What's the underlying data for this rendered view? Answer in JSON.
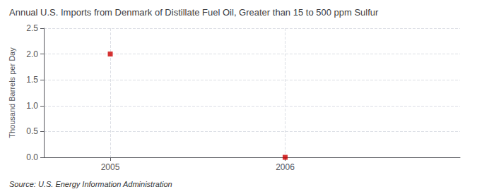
{
  "chart_data": {
    "type": "scatter",
    "title": "Annual U.S. Imports from Denmark of Distillate Fuel Oil, Greater than 15 to 500 ppm Sulfur",
    "ylabel": "Thousand Barrels per Day",
    "source": "Source: U.S. Energy Information Administration",
    "x": [
      2005,
      2006
    ],
    "values": [
      2.0,
      0.0
    ],
    "color": "#CC0000",
    "marker": "square",
    "xlim": [
      2004.62,
      2007.0
    ],
    "ylim": [
      0.0,
      2.5
    ],
    "xticks": [
      2005,
      2006
    ],
    "yticks": [
      {
        "value": 0.0,
        "label": "0.0"
      },
      0.5,
      {
        "value": 1.0,
        "label": "1.0"
      },
      1.5,
      {
        "value": 2.0,
        "label": "2.0"
      },
      2.5
    ],
    "grid": true
  }
}
